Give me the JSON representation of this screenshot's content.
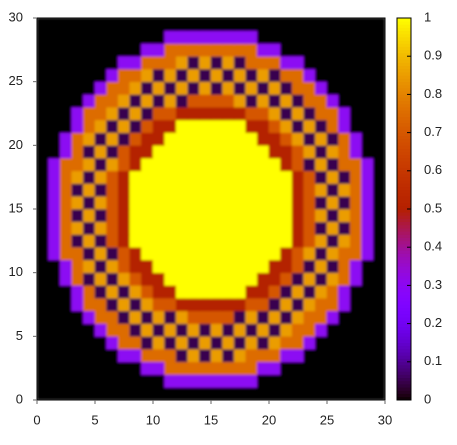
{
  "chart_data": {
    "type": "heatmap",
    "palette": "gnuplot",
    "xlim": [
      0,
      30
    ],
    "ylim": [
      0,
      30
    ],
    "cblim": [
      0,
      1
    ],
    "xticks": [
      0,
      5,
      10,
      15,
      20,
      25,
      30
    ],
    "yticks": [
      0,
      5,
      10,
      15,
      20,
      25,
      30
    ],
    "cbticks": [
      0,
      0.1,
      0.2,
      0.3,
      0.4,
      0.5,
      0.6,
      0.7,
      0.8,
      0.9,
      1
    ],
    "z": [
      [
        0,
        0,
        0,
        0,
        0,
        0,
        0,
        0,
        0,
        0,
        0,
        0,
        0,
        0,
        0,
        0,
        0,
        0,
        0,
        0,
        0,
        0,
        0,
        0,
        0,
        0,
        0,
        0,
        0,
        0
      ],
      [
        0,
        0,
        0,
        0,
        0,
        0,
        0,
        0,
        0,
        0,
        0,
        0.3,
        0.3,
        0.3,
        0.3,
        0.3,
        0.3,
        0.3,
        0.3,
        0,
        0,
        0,
        0,
        0,
        0,
        0,
        0,
        0,
        0,
        0
      ],
      [
        0,
        0,
        0,
        0,
        0,
        0,
        0,
        0,
        0,
        0.3,
        0.3,
        0.75,
        0.75,
        0.75,
        0.75,
        0.75,
        0.75,
        0.75,
        0.75,
        0.3,
        0.3,
        0,
        0,
        0,
        0,
        0,
        0,
        0,
        0,
        0
      ],
      [
        0,
        0,
        0,
        0,
        0,
        0,
        0,
        0.3,
        0.3,
        0.75,
        0.75,
        0.75,
        0.05,
        0.85,
        0.05,
        0.85,
        0.05,
        0.85,
        0.75,
        0.75,
        0.75,
        0.3,
        0.3,
        0,
        0,
        0,
        0,
        0,
        0,
        0
      ],
      [
        0,
        0,
        0,
        0,
        0,
        0,
        0.3,
        0.75,
        0.75,
        0.05,
        0.85,
        0.05,
        0.85,
        0.05,
        0.85,
        0.05,
        0.85,
        0.05,
        0.85,
        0.05,
        0.85,
        0.75,
        0.75,
        0.3,
        0,
        0,
        0,
        0,
        0,
        0
      ],
      [
        0,
        0,
        0,
        0,
        0,
        0.3,
        0.75,
        0.75,
        0.05,
        0.85,
        0.05,
        0.85,
        0.05,
        0.85,
        0.05,
        0.85,
        0.05,
        0.85,
        0.05,
        0.85,
        0.05,
        0.85,
        0.75,
        0.75,
        0.3,
        0,
        0,
        0,
        0,
        0
      ],
      [
        0,
        0,
        0,
        0,
        0.3,
        0.75,
        0.75,
        0.05,
        0.85,
        0.05,
        0.85,
        0.05,
        0.85,
        0.7,
        0.7,
        0.7,
        0.7,
        0.05,
        0.85,
        0.05,
        0.85,
        0.05,
        0.85,
        0.75,
        0.75,
        0.3,
        0,
        0,
        0,
        0
      ],
      [
        0,
        0,
        0,
        0.3,
        0.75,
        0.75,
        0.05,
        0.85,
        0.05,
        0.85,
        0.7,
        0.7,
        0.5,
        0.5,
        0.5,
        0.5,
        0.5,
        0.5,
        0.7,
        0.7,
        0.05,
        0.85,
        0.05,
        0.85,
        0.75,
        0.75,
        0.3,
        0,
        0,
        0
      ],
      [
        0,
        0,
        0,
        0.3,
        0.75,
        0.05,
        0.85,
        0.05,
        0.85,
        0.7,
        0.5,
        0.5,
        1,
        1,
        1,
        1,
        1,
        1,
        0.5,
        0.5,
        0.7,
        0.05,
        0.85,
        0.05,
        0.85,
        0.75,
        0.3,
        0,
        0,
        0
      ],
      [
        0,
        0,
        0.3,
        0.75,
        0.05,
        0.85,
        0.05,
        0.85,
        0.7,
        0.5,
        0.5,
        1,
        1,
        1,
        1,
        1,
        1,
        1,
        1,
        0.5,
        0.5,
        0.7,
        0.05,
        0.85,
        0.05,
        0.85,
        0.75,
        0.3,
        0,
        0
      ],
      [
        0,
        0,
        0.3,
        0.75,
        0.85,
        0.05,
        0.85,
        0.7,
        0.5,
        0.5,
        1,
        1,
        1,
        1,
        1,
        1,
        1,
        1,
        1,
        1,
        0.5,
        0.5,
        0.7,
        0.05,
        0.85,
        0.05,
        0.75,
        0.3,
        0,
        0
      ],
      [
        0,
        0.3,
        0.75,
        0.75,
        0.05,
        0.85,
        0.05,
        0.7,
        0.5,
        1,
        1,
        1,
        1,
        1,
        1,
        1,
        1,
        1,
        1,
        1,
        1,
        0.5,
        0.7,
        0.85,
        0.05,
        0.85,
        0.75,
        0.75,
        0.3,
        0
      ],
      [
        0,
        0.3,
        0.75,
        0.05,
        0.85,
        0.05,
        0.7,
        0.5,
        1,
        1,
        1,
        1,
        1,
        1,
        1,
        1,
        1,
        1,
        1,
        1,
        1,
        1,
        0.5,
        0.7,
        0.85,
        0.05,
        0.85,
        0.75,
        0.3,
        0
      ],
      [
        0,
        0.3,
        0.75,
        0.85,
        0.05,
        0.85,
        0.7,
        0.5,
        1,
        1,
        1,
        1,
        1,
        1,
        1,
        1,
        1,
        1,
        1,
        1,
        1,
        1,
        0.5,
        0.7,
        0.05,
        0.85,
        0.05,
        0.75,
        0.3,
        0
      ],
      [
        0,
        0.3,
        0.75,
        0.05,
        0.85,
        0.05,
        0.7,
        0.5,
        1,
        1,
        1,
        1,
        1,
        1,
        1,
        1,
        1,
        1,
        1,
        1,
        1,
        1,
        0.5,
        0.7,
        0.85,
        0.05,
        0.85,
        0.75,
        0.3,
        0
      ],
      [
        0,
        0.3,
        0.75,
        0.85,
        0.05,
        0.85,
        0.7,
        0.5,
        1,
        1,
        1,
        1,
        1,
        1,
        1,
        1,
        1,
        1,
        1,
        1,
        1,
        1,
        0.5,
        0.7,
        0.05,
        0.85,
        0.05,
        0.75,
        0.3,
        0
      ],
      [
        0,
        0.3,
        0.75,
        0.05,
        0.85,
        0.05,
        0.7,
        0.5,
        1,
        1,
        1,
        1,
        1,
        1,
        1,
        1,
        1,
        1,
        1,
        1,
        1,
        1,
        0.5,
        0.7,
        0.85,
        0.05,
        0.85,
        0.75,
        0.3,
        0
      ],
      [
        0,
        0.3,
        0.75,
        0.85,
        0.05,
        0.85,
        0.7,
        0.5,
        1,
        1,
        1,
        1,
        1,
        1,
        1,
        1,
        1,
        1,
        1,
        1,
        1,
        1,
        0.5,
        0.7,
        0.05,
        0.85,
        0.05,
        0.75,
        0.3,
        0
      ],
      [
        0,
        0.3,
        0.75,
        0.75,
        0.85,
        0.05,
        0.85,
        0.7,
        0.5,
        1,
        1,
        1,
        1,
        1,
        1,
        1,
        1,
        1,
        1,
        1,
        1,
        0.5,
        0.7,
        0.05,
        0.85,
        0.05,
        0.75,
        0.75,
        0.3,
        0
      ],
      [
        0,
        0,
        0.3,
        0.75,
        0.05,
        0.85,
        0.05,
        0.7,
        0.5,
        0.5,
        1,
        1,
        1,
        1,
        1,
        1,
        1,
        1,
        1,
        1,
        0.5,
        0.5,
        0.7,
        0.85,
        0.05,
        0.85,
        0.75,
        0.3,
        0,
        0
      ],
      [
        0,
        0,
        0.3,
        0.75,
        0.85,
        0.05,
        0.85,
        0.05,
        0.7,
        0.5,
        0.5,
        1,
        1,
        1,
        1,
        1,
        1,
        1,
        1,
        0.5,
        0.5,
        0.7,
        0.85,
        0.05,
        0.85,
        0.05,
        0.75,
        0.3,
        0,
        0
      ],
      [
        0,
        0,
        0,
        0.3,
        0.75,
        0.85,
        0.05,
        0.85,
        0.05,
        0.7,
        0.5,
        0.5,
        1,
        1,
        1,
        1,
        1,
        1,
        0.5,
        0.5,
        0.7,
        0.85,
        0.05,
        0.85,
        0.05,
        0.75,
        0.3,
        0,
        0,
        0
      ],
      [
        0,
        0,
        0,
        0.3,
        0.75,
        0.75,
        0.85,
        0.05,
        0.85,
        0.05,
        0.7,
        0.7,
        0.5,
        0.5,
        0.5,
        0.5,
        0.5,
        0.5,
        0.7,
        0.7,
        0.85,
        0.05,
        0.85,
        0.05,
        0.75,
        0.75,
        0.3,
        0,
        0,
        0
      ],
      [
        0,
        0,
        0,
        0,
        0.3,
        0.75,
        0.75,
        0.85,
        0.05,
        0.85,
        0.05,
        0.85,
        0.05,
        0.7,
        0.7,
        0.7,
        0.7,
        0.85,
        0.05,
        0.85,
        0.05,
        0.85,
        0.05,
        0.75,
        0.75,
        0.3,
        0,
        0,
        0,
        0
      ],
      [
        0,
        0,
        0,
        0,
        0,
        0.3,
        0.75,
        0.75,
        0.85,
        0.05,
        0.85,
        0.05,
        0.85,
        0.05,
        0.85,
        0.05,
        0.85,
        0.05,
        0.85,
        0.05,
        0.85,
        0.05,
        0.75,
        0.75,
        0.3,
        0,
        0,
        0,
        0,
        0
      ],
      [
        0,
        0,
        0,
        0,
        0,
        0,
        0.3,
        0.75,
        0.75,
        0.85,
        0.05,
        0.85,
        0.05,
        0.85,
        0.05,
        0.85,
        0.05,
        0.85,
        0.05,
        0.85,
        0.05,
        0.75,
        0.75,
        0.3,
        0,
        0,
        0,
        0,
        0,
        0
      ],
      [
        0,
        0,
        0,
        0,
        0,
        0,
        0,
        0.3,
        0.3,
        0.75,
        0.75,
        0.75,
        0.85,
        0.05,
        0.85,
        0.05,
        0.85,
        0.05,
        0.75,
        0.75,
        0.75,
        0.3,
        0.3,
        0,
        0,
        0,
        0,
        0,
        0,
        0
      ],
      [
        0,
        0,
        0,
        0,
        0,
        0,
        0,
        0,
        0,
        0.3,
        0.3,
        0.75,
        0.75,
        0.75,
        0.75,
        0.75,
        0.75,
        0.75,
        0.75,
        0.3,
        0.3,
        0,
        0,
        0,
        0,
        0,
        0,
        0,
        0,
        0
      ],
      [
        0,
        0,
        0,
        0,
        0,
        0,
        0,
        0,
        0,
        0,
        0,
        0.3,
        0.3,
        0.3,
        0.3,
        0.3,
        0.3,
        0.3,
        0.3,
        0,
        0,
        0,
        0,
        0,
        0,
        0,
        0,
        0,
        0,
        0
      ],
      [
        0,
        0,
        0,
        0,
        0,
        0,
        0,
        0,
        0,
        0,
        0,
        0,
        0,
        0,
        0,
        0,
        0,
        0,
        0,
        0,
        0,
        0,
        0,
        0,
        0,
        0,
        0,
        0,
        0,
        0
      ]
    ]
  }
}
